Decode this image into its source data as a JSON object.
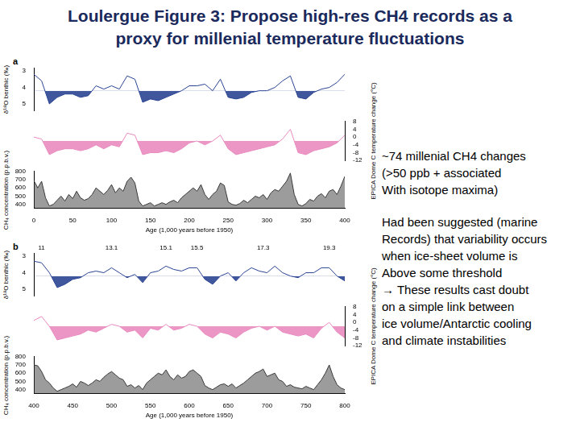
{
  "slide": {
    "title": [
      "Loulergue Figure 3: Propose high-res CH4 records as a",
      "proxy for millenial temperature fluctuations"
    ],
    "text": [
      [
        "~74 millenial CH4 changes",
        "(>50 ppb + associated",
        "With isotope maxima)"
      ],
      [
        "Had been suggested (marine",
        "Records) that variability occurs",
        "when ice-sheet volume is",
        "Above some threshold",
        "→ These results cast doubt",
        "on a simple link between",
        "ice volume/Antarctic cooling",
        "and climate instabilities"
      ]
    ]
  },
  "chart_data": [
    {
      "type": "line",
      "panel": "a",
      "grid": false,
      "tick_labels": "y",
      "x": [
        0,
        10,
        20,
        30,
        40,
        50,
        60,
        70,
        80,
        90,
        100,
        110,
        120,
        130,
        140,
        150,
        160,
        170,
        180,
        190,
        200,
        210,
        220,
        230,
        240,
        250,
        260,
        270,
        280,
        290,
        300,
        310,
        320,
        330,
        340,
        350,
        360,
        370,
        380,
        390,
        400
      ],
      "xlim": [
        0,
        400
      ],
      "ylim": [
        5.4,
        2.8
      ],
      "yticks": [
        3,
        4,
        5
      ],
      "y_label": "δ¹⁸O benthic (‰)",
      "series": [
        {
          "color": "#2b4593",
          "threshold": 4.2,
          "values": [
            3.2,
            3.6,
            5.0,
            4.6,
            4.4,
            4.4,
            4.6,
            4.5,
            3.9,
            4.1,
            3.9,
            4.1,
            3.3,
            3.5,
            4.9,
            4.7,
            4.8,
            4.6,
            4.4,
            4.2,
            3.9,
            3.9,
            3.8,
            4.2,
            3.5,
            4.6,
            4.7,
            4.6,
            4.3,
            4.2,
            4.2,
            4.0,
            3.6,
            3.3,
            4.6,
            4.7,
            4.3,
            4.1,
            4.0,
            3.7,
            3.2
          ]
        }
      ]
    },
    {
      "type": "line",
      "panel": "a",
      "grid": false,
      "tick_labels": "y",
      "x": [
        0,
        10,
        20,
        30,
        40,
        50,
        60,
        70,
        80,
        90,
        100,
        110,
        120,
        130,
        140,
        150,
        160,
        170,
        180,
        190,
        200,
        210,
        220,
        230,
        240,
        250,
        260,
        270,
        280,
        290,
        300,
        310,
        320,
        330,
        340,
        350,
        360,
        370,
        380,
        390,
        400
      ],
      "xlim": [
        0,
        400
      ],
      "y2lim": [
        -12,
        8
      ],
      "y2ticks": [
        -12,
        -8,
        -4,
        0,
        4,
        8
      ],
      "y2_label": "EPICA Dome C temperature change (°C)",
      "series": [
        {
          "color": "#e98bbf",
          "threshold": -2,
          "axis": "y2",
          "values": [
            0,
            -1,
            -9,
            -7,
            -6,
            -6,
            -7,
            -6,
            -4,
            -6,
            -4,
            -5,
            2,
            1,
            -9,
            -8,
            -8,
            -7,
            -8,
            -6,
            -3,
            -2,
            -4,
            -2,
            1,
            -6,
            -9,
            -8,
            -7,
            -6,
            -5,
            -4,
            -1,
            4,
            -8,
            -9,
            -7,
            -6,
            -5,
            -3,
            1
          ]
        }
      ]
    },
    {
      "type": "line",
      "panel": "a",
      "grid": false,
      "x": [
        0,
        5,
        10,
        15,
        20,
        25,
        30,
        35,
        40,
        45,
        50,
        55,
        60,
        65,
        70,
        75,
        80,
        85,
        90,
        95,
        100,
        105,
        110,
        115,
        120,
        125,
        130,
        135,
        140,
        145,
        150,
        155,
        160,
        165,
        170,
        175,
        180,
        185,
        190,
        195,
        200,
        205,
        210,
        215,
        220,
        225,
        230,
        235,
        240,
        245,
        250,
        255,
        260,
        265,
        270,
        275,
        280,
        285,
        290,
        295,
        300,
        305,
        310,
        315,
        320,
        325,
        330,
        335,
        340,
        345,
        350,
        355,
        360,
        365,
        370,
        375,
        380,
        385,
        390,
        395,
        400
      ],
      "xlim": [
        0,
        400
      ],
      "xticks": [
        0,
        50,
        100,
        150,
        200,
        250,
        300,
        350,
        400
      ],
      "x_label": "Age (1,000 years before 1950)",
      "ylim": [
        350,
        800
      ],
      "yticks": [
        400,
        500,
        600,
        700,
        800
      ],
      "y_label": "CH₄ concentration (p.p.b.v.)",
      "series": [
        {
          "color": "#3a3a3a",
          "values": [
            690,
            600,
            680,
            480,
            380,
            400,
            450,
            500,
            440,
            520,
            470,
            560,
            480,
            450,
            470,
            520,
            600,
            560,
            520,
            570,
            640,
            540,
            600,
            560,
            680,
            730,
            660,
            440,
            380,
            400,
            420,
            380,
            400,
            420,
            400,
            430,
            450,
            420,
            480,
            520,
            560,
            600,
            560,
            640,
            520,
            460,
            520,
            560,
            660,
            630,
            430,
            400,
            390,
            410,
            450,
            420,
            460,
            500,
            480,
            520,
            460,
            540,
            580,
            560,
            620,
            680,
            780,
            520,
            400,
            380,
            410,
            460,
            440,
            500,
            530,
            480,
            560,
            580,
            520,
            620,
            740
          ]
        }
      ]
    },
    {
      "type": "line",
      "panel": "b",
      "grid": false,
      "tick_labels": "y",
      "x": [
        400,
        410,
        420,
        430,
        440,
        450,
        460,
        470,
        480,
        490,
        500,
        510,
        520,
        530,
        540,
        550,
        560,
        570,
        580,
        590,
        600,
        610,
        620,
        630,
        640,
        650,
        660,
        670,
        680,
        690,
        700,
        710,
        720,
        730,
        740,
        750,
        760,
        770,
        780,
        790,
        800
      ],
      "xlim": [
        400,
        800
      ],
      "ylim": [
        5.4,
        2.8
      ],
      "yticks": [
        3,
        4,
        5
      ],
      "y_label": "δ¹⁸O benthic (‰)",
      "annotations": [
        {
          "text": "11",
          "x": 410
        },
        {
          "text": "13.1",
          "x": 500
        },
        {
          "text": "15.1",
          "x": 570
        },
        {
          "text": "15.5",
          "x": 610
        },
        {
          "text": "17.3",
          "x": 695
        },
        {
          "text": "19.3",
          "x": 780
        }
      ],
      "series": [
        {
          "color": "#2b4593",
          "threshold": 4.2,
          "values": [
            3.3,
            3.4,
            4.0,
            4.9,
            4.7,
            4.4,
            4.3,
            4.0,
            3.9,
            4.0,
            3.7,
            4.0,
            4.3,
            4.1,
            4.6,
            4.0,
            3.9,
            3.6,
            3.8,
            3.9,
            3.7,
            3.7,
            4.4,
            4.7,
            4.2,
            4.0,
            4.5,
            4.0,
            3.7,
            3.9,
            4.0,
            3.6,
            4.0,
            4.2,
            4.3,
            4.0,
            4.0,
            3.7,
            3.7,
            4.2,
            4.5
          ]
        }
      ]
    },
    {
      "type": "line",
      "panel": "b",
      "grid": false,
      "tick_labels": "y",
      "x": [
        400,
        410,
        420,
        430,
        440,
        450,
        460,
        470,
        480,
        490,
        500,
        510,
        520,
        530,
        540,
        550,
        560,
        570,
        580,
        590,
        600,
        610,
        620,
        630,
        640,
        650,
        660,
        670,
        680,
        690,
        700,
        710,
        720,
        730,
        740,
        750,
        760,
        770,
        780,
        790,
        800
      ],
      "xlim": [
        400,
        800
      ],
      "y2lim": [
        -12,
        8
      ],
      "y2ticks": [
        -12,
        -8,
        -4,
        0,
        4,
        8
      ],
      "y2_label": "EPICA Dome C temperature change (°C)",
      "series": [
        {
          "color": "#e98bbf",
          "threshold": -2,
          "axis": "y2",
          "values": [
            1,
            3,
            -2,
            -9,
            -8,
            -7,
            -6,
            -4,
            -5,
            -3,
            -1,
            -2,
            -5,
            -4,
            -8,
            -3,
            -4,
            -1,
            -4,
            -3,
            -1,
            -2,
            -6,
            -8,
            -5,
            -6,
            -8,
            -5,
            -3,
            -2,
            -4,
            -2,
            -5,
            -6,
            -7,
            -6,
            -8,
            -3,
            0,
            -5,
            -8
          ]
        }
      ]
    },
    {
      "type": "line",
      "panel": "b",
      "grid": false,
      "x": [
        400,
        405,
        410,
        415,
        420,
        425,
        430,
        435,
        440,
        445,
        450,
        455,
        460,
        465,
        470,
        475,
        480,
        485,
        490,
        495,
        500,
        505,
        510,
        515,
        520,
        525,
        530,
        535,
        540,
        545,
        550,
        555,
        560,
        565,
        570,
        575,
        580,
        585,
        590,
        595,
        600,
        605,
        610,
        615,
        620,
        625,
        630,
        635,
        640,
        645,
        650,
        655,
        660,
        665,
        670,
        675,
        680,
        685,
        690,
        695,
        700,
        705,
        710,
        715,
        720,
        725,
        730,
        735,
        740,
        745,
        750,
        755,
        760,
        765,
        770,
        775,
        780,
        785,
        790,
        795,
        800
      ],
      "xlim": [
        400,
        800
      ],
      "xticks": [
        400,
        450,
        500,
        550,
        600,
        650,
        700,
        750,
        800
      ],
      "x_label": "Age (1,000 years before 1950)",
      "ylim": [
        350,
        800
      ],
      "yticks": [
        400,
        500,
        600,
        700,
        800
      ],
      "y_label": "CH₄ concentration (p.p.b.v.)",
      "series": [
        {
          "color": "#3a3a3a",
          "values": [
            700,
            690,
            620,
            520,
            480,
            420,
            380,
            400,
            420,
            440,
            470,
            430,
            500,
            480,
            450,
            480,
            520,
            500,
            550,
            590,
            620,
            580,
            540,
            520,
            440,
            460,
            420,
            450,
            400,
            480,
            520,
            560,
            600,
            580,
            640,
            560,
            520,
            580,
            540,
            560,
            620,
            640,
            600,
            560,
            450,
            420,
            400,
            430,
            460,
            470,
            440,
            470,
            420,
            450,
            480,
            520,
            560,
            600,
            620,
            650,
            560,
            580,
            600,
            520,
            500,
            440,
            460,
            430,
            420,
            410,
            440,
            420,
            400,
            460,
            520,
            600,
            700,
            560,
            460,
            420,
            400
          ]
        }
      ]
    }
  ]
}
